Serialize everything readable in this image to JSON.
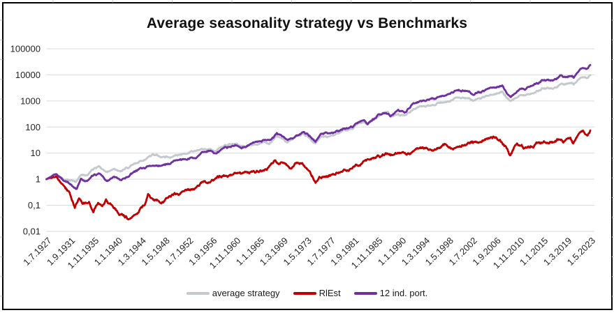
{
  "title": "Average seasonality strategy vs Benchmarks",
  "colors": {
    "frame_border": "#000000",
    "gridline": "#d9d9d9",
    "axis_text": "#262626",
    "title_text": "#111111",
    "spreadsheet_tick": "#c9c9c9"
  },
  "chart_data": {
    "type": "line",
    "title": "Average seasonality strategy vs Benchmarks",
    "xlabel": "",
    "ylabel": "",
    "grid": "horizontal-major",
    "legend_position": "bottom",
    "y_axis": {
      "scale": "log",
      "min": 0.01,
      "max": 100000,
      "ticks": [
        "100000",
        "10000",
        "1000",
        "100",
        "10",
        "1",
        "0,1",
        "0,01"
      ]
    },
    "x_axis": {
      "start_year_decimal": 1927.5,
      "end_year_decimal": 2023.33,
      "ticks": [
        "1.7.1927",
        "1.9.1931",
        "1.11.1935",
        "1.1.1940",
        "1.3.1944",
        "1.5.1948",
        "1.7.1952",
        "1.9.1956",
        "1.11.1960",
        "1.1.1965",
        "1.3.1969",
        "1.5.1973",
        "1.7.1977",
        "1.9.1981",
        "1.11.1985",
        "1.1.1990",
        "1.3.1994",
        "1.5.1998",
        "1.7.2002",
        "1.9.2006",
        "1.11.2010",
        "1.1.2015",
        "1.3.2019",
        "1.5.2023"
      ]
    },
    "series": [
      {
        "name": "average strategy",
        "color": "#c4c9ce",
        "anchors": [
          [
            1927.5,
            1.0
          ],
          [
            1928.5,
            1.35
          ],
          [
            1929.2,
            1.7
          ],
          [
            1930.2,
            1.25
          ],
          [
            1931.2,
            1.0
          ],
          [
            1932.0,
            0.85
          ],
          [
            1932.7,
            0.8
          ],
          [
            1933.7,
            1.5
          ],
          [
            1934.5,
            1.6
          ],
          [
            1935.5,
            2.2
          ],
          [
            1936.8,
            3.2
          ],
          [
            1938.2,
            1.9
          ],
          [
            1939.2,
            2.5
          ],
          [
            1940.5,
            2.2
          ],
          [
            1941.5,
            2.6
          ],
          [
            1943.0,
            3.6
          ],
          [
            1944.6,
            4.8
          ],
          [
            1946.2,
            9.5
          ],
          [
            1947.7,
            6.2
          ],
          [
            1949.5,
            6.8
          ],
          [
            1952.0,
            9.5
          ],
          [
            1953.9,
            12
          ],
          [
            1956.0,
            14
          ],
          [
            1957.3,
            13
          ],
          [
            1958.2,
            18
          ],
          [
            1960.0,
            21
          ],
          [
            1962.0,
            18
          ],
          [
            1964.4,
            22
          ],
          [
            1966.0,
            27
          ],
          [
            1966.8,
            23
          ],
          [
            1968.1,
            46
          ],
          [
            1970.0,
            29
          ],
          [
            1971.0,
            40
          ],
          [
            1972.8,
            58
          ],
          [
            1974.9,
            26
          ],
          [
            1976.0,
            42
          ],
          [
            1978.0,
            48
          ],
          [
            1980.0,
            72
          ],
          [
            1981.5,
            85
          ],
          [
            1983.0,
            150
          ],
          [
            1984.3,
            140
          ],
          [
            1986.0,
            250
          ],
          [
            1987.7,
            390
          ],
          [
            1988.1,
            230
          ],
          [
            1989.5,
            310
          ],
          [
            1990.7,
            290
          ],
          [
            1992.0,
            470
          ],
          [
            1994.0,
            600
          ],
          [
            1996.0,
            800
          ],
          [
            1998.5,
            1150
          ],
          [
            2000.0,
            1500
          ],
          [
            2001.0,
            1400
          ],
          [
            2002.8,
            1050
          ],
          [
            2004.5,
            1500
          ],
          [
            2007.8,
            2100
          ],
          [
            2009.2,
            950
          ],
          [
            2011.0,
            1600
          ],
          [
            2013.0,
            2300
          ],
          [
            2015.0,
            3200
          ],
          [
            2016.3,
            2900
          ],
          [
            2018.0,
            4400
          ],
          [
            2019.0,
            4100
          ],
          [
            2020.1,
            5200
          ],
          [
            2020.4,
            4200
          ],
          [
            2021.5,
            6800
          ],
          [
            2022.2,
            7600
          ],
          [
            2022.7,
            6900
          ],
          [
            2023.33,
            9000
          ]
        ]
      },
      {
        "name": "RlEst",
        "color": "#c00000",
        "anchors": [
          [
            1927.5,
            1.0
          ],
          [
            1928.3,
            1.2
          ],
          [
            1929.3,
            1.45
          ],
          [
            1930.5,
            0.6
          ],
          [
            1931.5,
            0.28
          ],
          [
            1932.5,
            0.09
          ],
          [
            1933.2,
            0.2
          ],
          [
            1933.9,
            0.11
          ],
          [
            1935.0,
            0.16
          ],
          [
            1935.8,
            0.062
          ],
          [
            1936.6,
            0.15
          ],
          [
            1937.3,
            0.095
          ],
          [
            1938.0,
            0.16
          ],
          [
            1939.2,
            0.08
          ],
          [
            1940.2,
            0.048
          ],
          [
            1941.0,
            0.042
          ],
          [
            1941.9,
            0.034
          ],
          [
            1942.8,
            0.055
          ],
          [
            1943.8,
            0.065
          ],
          [
            1944.8,
            0.1
          ],
          [
            1945.4,
            0.28
          ],
          [
            1946.3,
            0.17
          ],
          [
            1948.0,
            0.165
          ],
          [
            1950.3,
            0.23
          ],
          [
            1952.5,
            0.35
          ],
          [
            1954.5,
            0.6
          ],
          [
            1957.0,
            1.0
          ],
          [
            1958.5,
            1.3
          ],
          [
            1960.0,
            1.45
          ],
          [
            1962.0,
            1.6
          ],
          [
            1963.5,
            1.9
          ],
          [
            1965.6,
            2.2
          ],
          [
            1966.5,
            2.6
          ],
          [
            1967.8,
            5.0
          ],
          [
            1968.6,
            3.8
          ],
          [
            1969.4,
            5.3
          ],
          [
            1970.4,
            2.9
          ],
          [
            1971.5,
            4.2
          ],
          [
            1972.5,
            4.4
          ],
          [
            1973.5,
            2.2
          ],
          [
            1974.9,
            0.78
          ],
          [
            1976.5,
            1.35
          ],
          [
            1978.5,
            1.7
          ],
          [
            1980.5,
            2.4
          ],
          [
            1982.5,
            3.2
          ],
          [
            1984.5,
            5.5
          ],
          [
            1986.0,
            7.5
          ],
          [
            1987.6,
            9.5
          ],
          [
            1988.2,
            7.2
          ],
          [
            1989.5,
            9.5
          ],
          [
            1991.0,
            9.0
          ],
          [
            1992.5,
            12
          ],
          [
            1993.8,
            14.5
          ],
          [
            1995.0,
            13
          ],
          [
            1996.5,
            17
          ],
          [
            1998.0,
            21
          ],
          [
            1999.2,
            16
          ],
          [
            2000.5,
            20
          ],
          [
            2002.4,
            28
          ],
          [
            2003.2,
            25
          ],
          [
            2005.0,
            33
          ],
          [
            2006.5,
            38
          ],
          [
            2007.5,
            30
          ],
          [
            2008.7,
            14
          ],
          [
            2009.2,
            6.8
          ],
          [
            2010.2,
            16
          ],
          [
            2011.2,
            19
          ],
          [
            2011.8,
            15
          ],
          [
            2013.5,
            23
          ],
          [
            2015.0,
            28
          ],
          [
            2016.3,
            26
          ],
          [
            2017.5,
            33
          ],
          [
            2018.8,
            28
          ],
          [
            2019.8,
            38
          ],
          [
            2020.3,
            20
          ],
          [
            2021.3,
            42
          ],
          [
            2022.1,
            52
          ],
          [
            2022.7,
            40
          ],
          [
            2023.33,
            66
          ]
        ]
      },
      {
        "name": "12 ind. port.",
        "color": "#7030a0",
        "anchors": [
          [
            1927.5,
            1.0
          ],
          [
            1928.5,
            1.4
          ],
          [
            1929.2,
            1.8
          ],
          [
            1930.2,
            1.2
          ],
          [
            1931.2,
            0.8
          ],
          [
            1932.0,
            0.55
          ],
          [
            1932.8,
            0.44
          ],
          [
            1933.6,
            1.0
          ],
          [
            1934.3,
            0.85
          ],
          [
            1935.5,
            1.2
          ],
          [
            1936.8,
            1.7
          ],
          [
            1938.2,
            0.9
          ],
          [
            1939.2,
            1.25
          ],
          [
            1940.6,
            1.0
          ],
          [
            1941.5,
            1.15
          ],
          [
            1943.0,
            1.8
          ],
          [
            1944.6,
            2.6
          ],
          [
            1946.0,
            3.4
          ],
          [
            1947.5,
            3.1
          ],
          [
            1949.0,
            3.6
          ],
          [
            1951.0,
            5.2
          ],
          [
            1953.9,
            7.5
          ],
          [
            1956.1,
            12
          ],
          [
            1957.4,
            11
          ],
          [
            1958.5,
            15
          ],
          [
            1960.0,
            17
          ],
          [
            1962.0,
            16
          ],
          [
            1964.4,
            27
          ],
          [
            1966.0,
            32
          ],
          [
            1966.8,
            28
          ],
          [
            1968.1,
            52
          ],
          [
            1970.0,
            32
          ],
          [
            1971.2,
            46
          ],
          [
            1972.9,
            66
          ],
          [
            1974.9,
            31
          ],
          [
            1976.0,
            52
          ],
          [
            1978.0,
            58
          ],
          [
            1980.0,
            88
          ],
          [
            1981.5,
            100
          ],
          [
            1983.0,
            170
          ],
          [
            1984.3,
            160
          ],
          [
            1986.0,
            270
          ],
          [
            1987.7,
            340
          ],
          [
            1988.1,
            235
          ],
          [
            1989.5,
            380
          ],
          [
            1990.7,
            340
          ],
          [
            1992.0,
            700
          ],
          [
            1994.0,
            1000
          ],
          [
            1996.0,
            1400
          ],
          [
            1998.5,
            2100
          ],
          [
            2000.2,
            2900
          ],
          [
            2001.2,
            2700
          ],
          [
            2002.8,
            1800
          ],
          [
            2004.5,
            2600
          ],
          [
            2007.8,
            3500
          ],
          [
            2009.2,
            1500
          ],
          [
            2011.0,
            2900
          ],
          [
            2013.0,
            4400
          ],
          [
            2015.0,
            6300
          ],
          [
            2016.3,
            5800
          ],
          [
            2018.0,
            9000
          ],
          [
            2019.0,
            8300
          ],
          [
            2020.1,
            10500
          ],
          [
            2020.4,
            8600
          ],
          [
            2021.5,
            14500
          ],
          [
            2022.2,
            17000
          ],
          [
            2022.7,
            15500
          ],
          [
            2023.33,
            22500
          ]
        ]
      }
    ]
  },
  "legend": {
    "items": [
      "average strategy",
      "RlEst",
      "12 ind. port."
    ]
  }
}
